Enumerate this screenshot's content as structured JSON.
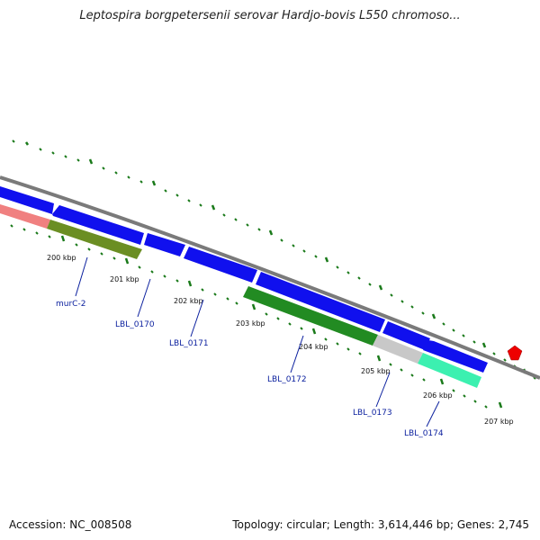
{
  "title": "Leptospira borgpetersenii serovar Hardjo-bovis L550 chromoso...",
  "footer": {
    "accession": "Accession: NC_008508",
    "stats": "Topology: circular; Length: 3,614,446 bp; Genes: 2,745"
  },
  "ticks": [
    "200 kbp",
    "201 kbp",
    "202 kbp",
    "203 kbp",
    "204 kbp",
    "205 kbp",
    "206 kbp",
    "207 kbp"
  ],
  "gene_labels": [
    "murC-2",
    "LBL_0170",
    "LBL_0171",
    "LBL_0172",
    "LBL_0173",
    "LBL_0174"
  ],
  "colors": {
    "forward_gene": "#1010ee",
    "backbone": "#7a7a7a",
    "tick": "#1a7a1a",
    "label": "#0a1f9e",
    "pink_gene": "#f08080",
    "olive_gene": "#6b8e23",
    "green_gene": "#228b22",
    "gray_gene": "#c8c8c8",
    "teal_gene": "#3cf0b0",
    "marker": "#ee0000"
  }
}
